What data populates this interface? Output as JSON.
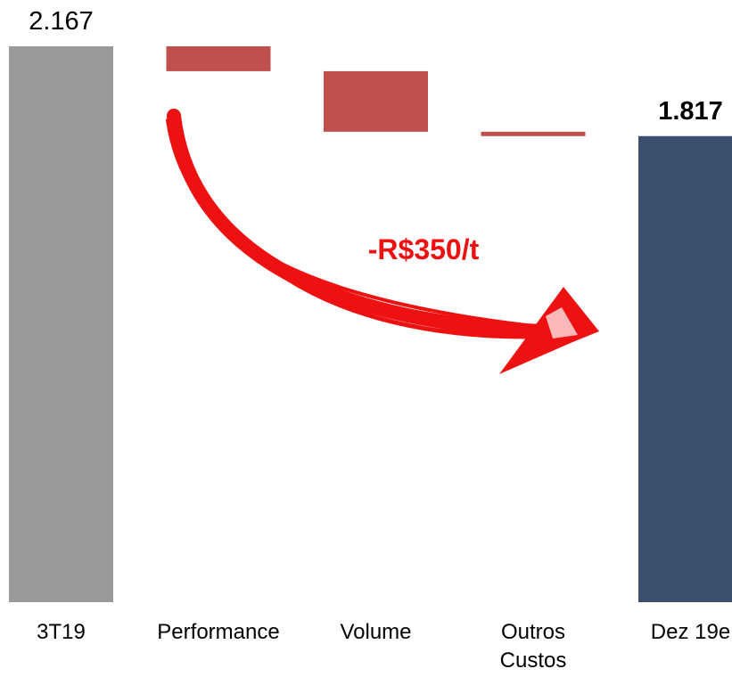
{
  "chart_data": {
    "type": "waterfall",
    "categories": [
      "3T19",
      "Performance",
      "Volume",
      "Outros\nCustos",
      "Dez 19e"
    ],
    "values": [
      2167,
      -97,
      -236,
      -17,
      1817
    ],
    "value_labels": [
      "2.167",
      null,
      null,
      null,
      "1.817"
    ],
    "measure": [
      "absolute",
      "relative",
      "relative",
      "relative",
      "total"
    ],
    "colors": {
      "absolute": "#999999",
      "relative": "#c0504d",
      "total": "#3a4e6e"
    },
    "annotation": "-R$350/t"
  }
}
